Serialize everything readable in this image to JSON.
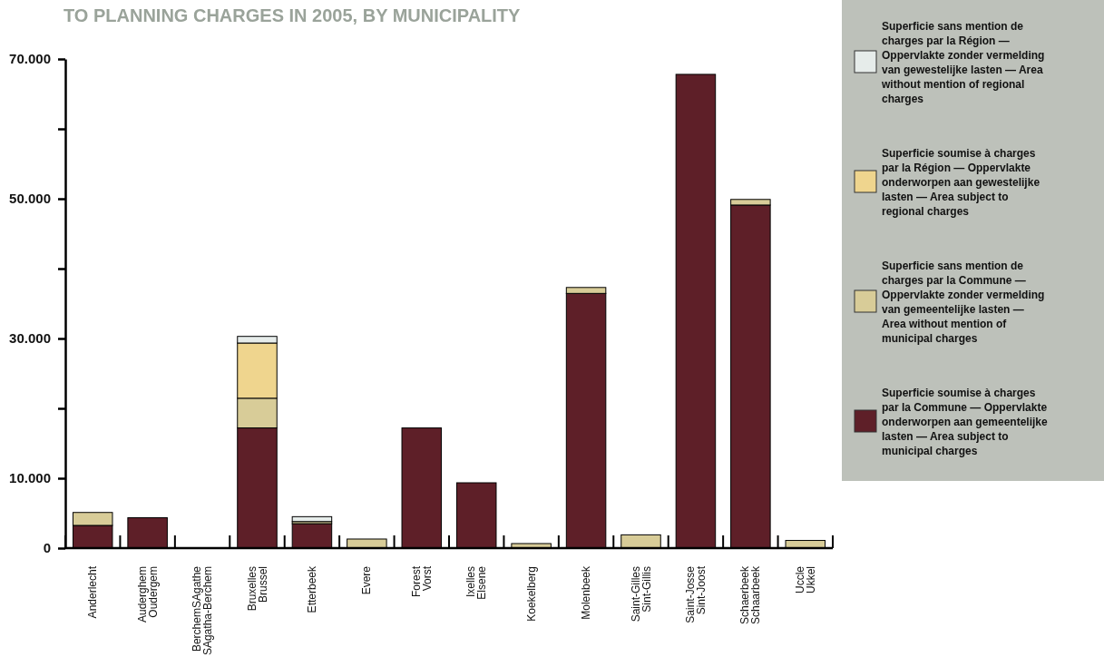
{
  "chart_data": {
    "type": "bar",
    "title": "TO PLANNING CHARGES IN 2005, BY MUNICIPALITY",
    "stacked": true,
    "categories": [
      "Anderlecht",
      "Auderghem\nOudergem",
      "BerchemSAgathe\nSAgatha-Berchem",
      "Bruxelles\nBrussel",
      "Etterbeek",
      "Evere",
      "Forest\nVorst",
      "Ixelles\nElsene",
      "Koekelberg",
      "Molenbeek",
      "Saint-Gilles\nSint-Gillis",
      "Saint-Josse\nSint-Joost",
      "Schaerbeek\nSchaarbeek",
      "Uccle\nUkkel"
    ],
    "series": [
      {
        "name": "Superficie soumise à charges par la Commune — Oppervlakte onderworpen aan gemeentelijke lasten — Area subject to municipal charges",
        "color": "#5e1f28",
        "values": [
          3250,
          4350,
          0,
          17200,
          3500,
          0,
          17200,
          9350,
          0,
          36450,
          0,
          67800,
          49100,
          0
        ]
      },
      {
        "name": "Superficie sans mention de charges par la Commune — Oppervlakte zonder vermelding van gemeentelijke lasten — Area without mention of municipal charges",
        "color": "#d8cc98",
        "values": [
          1850,
          0,
          0,
          4250,
          300,
          1300,
          0,
          0,
          650,
          850,
          1900,
          0,
          800,
          1100
        ]
      },
      {
        "name": "Superficie soumise à charges par la Région — Oppervlakte onderworpen aan gewestelijke lasten — Area subject to regional charges",
        "color": "#efd58e",
        "values": [
          0,
          0,
          0,
          7900,
          0,
          0,
          0,
          0,
          0,
          0,
          0,
          0,
          0,
          0
        ]
      },
      {
        "name": "Superficie sans mention de charges par la Région — Oppervlakte zonder vermelding van gewestelijke lasten — Area without mention of regional charges",
        "color": "#e6ecea",
        "values": [
          0,
          0,
          0,
          950,
          700,
          0,
          0,
          0,
          0,
          0,
          0,
          0,
          0,
          0
        ]
      }
    ],
    "ylim": [
      0,
      70000
    ],
    "yticks": [
      0,
      {
        "value": 10000,
        "label": "10.000"
      },
      {
        "value": 20000,
        "label": null
      },
      {
        "value": 30000,
        "label": "30.000"
      },
      {
        "value": 40000,
        "label": null
      },
      {
        "value": 50000,
        "label": "50.000"
      },
      {
        "value": 60000,
        "label": null
      },
      {
        "value": 70000,
        "label": "70.000"
      }
    ],
    "legend": "top right",
    "grid": false
  }
}
